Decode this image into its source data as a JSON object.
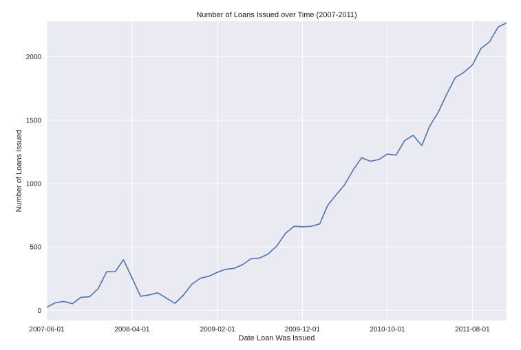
{
  "chart_data": {
    "type": "line",
    "title": "Number of Loans Issued over Time (2007-2011)",
    "xlabel": "Date Loan Was Issued",
    "ylabel": "Number of Loans Issued",
    "x_axis": "date (monthly)",
    "xlim": [
      "2007-06-01",
      "2011-12-01"
    ],
    "ylim": [
      -80,
      2280
    ],
    "x_ticks": [
      "2007-06-01",
      "2008-04-01",
      "2009-02-01",
      "2009-12-01",
      "2010-10-01",
      "2011-08-01"
    ],
    "y_ticks": [
      0,
      500,
      1000,
      1500,
      2000
    ],
    "grid": true,
    "legend": "none",
    "colors": {
      "background": "#eaeaf2",
      "grid": "#ffffff",
      "line": "#4c72b0"
    },
    "series": [
      {
        "x": [
          "2007-06-01",
          "2007-07-01",
          "2007-08-01",
          "2007-09-01",
          "2007-10-01",
          "2007-11-01",
          "2007-12-01",
          "2008-01-01",
          "2008-02-01",
          "2008-03-01",
          "2008-04-01",
          "2008-05-01",
          "2008-06-01",
          "2008-07-01",
          "2008-08-01",
          "2008-09-01",
          "2008-10-01",
          "2008-11-01",
          "2008-12-01",
          "2009-01-01",
          "2009-02-01",
          "2009-03-01",
          "2009-04-01",
          "2009-05-01",
          "2009-06-01",
          "2009-07-01",
          "2009-08-01",
          "2009-09-01",
          "2009-10-01",
          "2009-11-01",
          "2009-12-01",
          "2010-01-01",
          "2010-02-01",
          "2010-03-01",
          "2010-04-01",
          "2010-05-01",
          "2010-06-01",
          "2010-07-01",
          "2010-08-01",
          "2010-09-01",
          "2010-10-01",
          "2010-11-01",
          "2010-12-01",
          "2011-01-01",
          "2011-02-01",
          "2011-03-01",
          "2011-04-01",
          "2011-05-01",
          "2011-06-01",
          "2011-07-01",
          "2011-08-01",
          "2011-09-01",
          "2011-10-01",
          "2011-11-01",
          "2011-12-01"
        ],
        "values": [
          24,
          59,
          70,
          52,
          102,
          107,
          169,
          304,
          305,
          399,
          255,
          111,
          121,
          138,
          97,
          55,
          118,
          206,
          253,
          269,
          301,
          323,
          331,
          360,
          408,
          412,
          445,
          509,
          606,
          663,
          659,
          662,
          682,
          827,
          912,
          991,
          1109,
          1204,
          1176,
          1190,
          1233,
          1224,
          1337,
          1381,
          1300,
          1452,
          1564,
          1705,
          1837,
          1877,
          1936,
          2067,
          2118,
          2235,
          2267
        ]
      }
    ]
  }
}
